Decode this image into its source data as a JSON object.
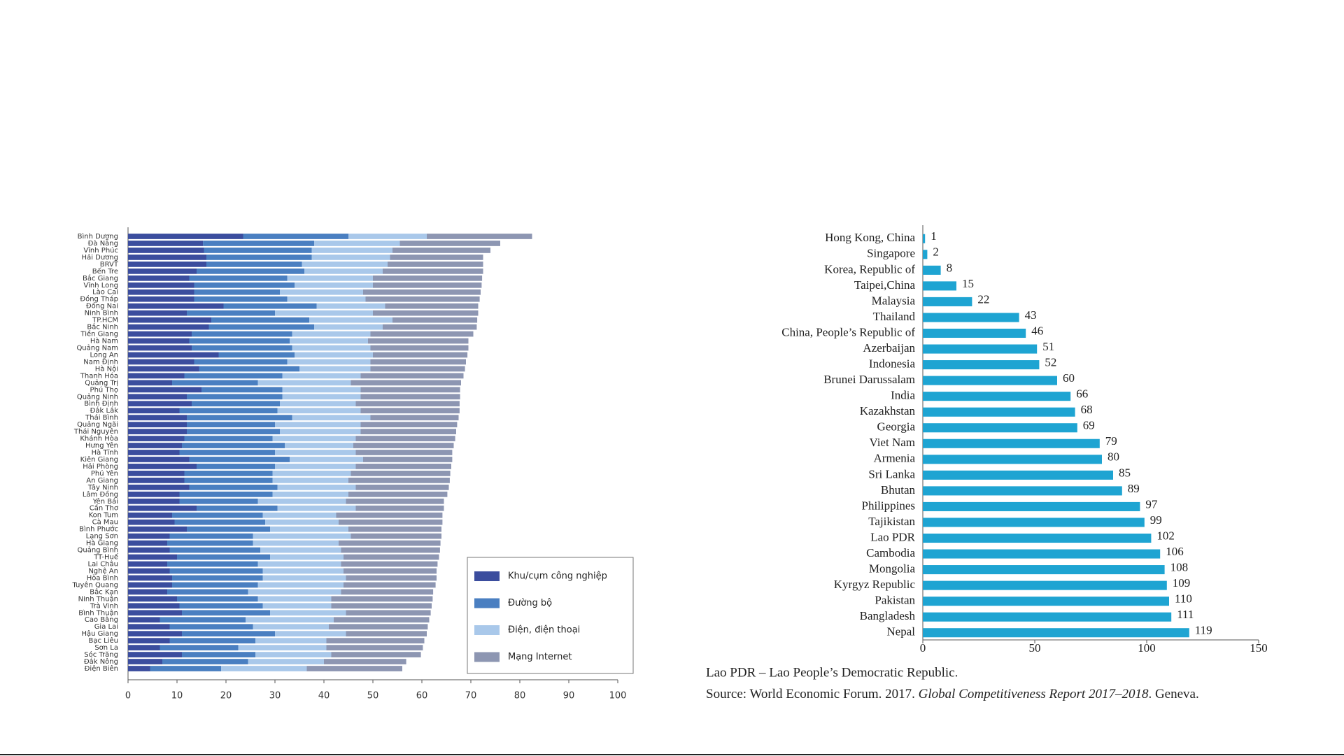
{
  "chart_data": [
    {
      "type": "bar",
      "orientation": "horizontal",
      "stacked": true,
      "categories": [
        "Bình Dương",
        "Đà Nẵng",
        "Vĩnh Phúc",
        "Hải Dương",
        "BRVT",
        "Bến Tre",
        "Bắc Giang",
        "Vĩnh Long",
        "Lào Cai",
        "Đồng Tháp",
        "Đồng Nai",
        "Ninh Bình",
        "TP.HCM",
        "Bắc Ninh",
        "Tiền Giang",
        "Hà Nam",
        "Quảng Nam",
        "Long An",
        "Nam Định",
        "Hà Nội",
        "Thanh Hóa",
        "Quảng Trị",
        "Phú Thọ",
        "Quảng Ninh",
        "Bình Định",
        "Đắk Lắk",
        "Thái Bình",
        "Quảng Ngãi",
        "Thái Nguyên",
        "Khánh Hòa",
        "Hưng Yên",
        "Hà Tĩnh",
        "Kiên Giang",
        "Hải Phòng",
        "Phú Yên",
        "An Giang",
        "Tây Ninh",
        "Lâm Đồng",
        "Yên Bái",
        "Cần Thơ",
        "Kon Tum",
        "Cà Mau",
        "Bình Phước",
        "Lạng Sơn",
        "Hà Giang",
        "Quảng Bình",
        "TT-Huế",
        "Lai Châu",
        "Nghệ An",
        "Hòa Bình",
        "Tuyên Quang",
        "Bắc Kạn",
        "Ninh Thuận",
        "Trà Vinh",
        "Bình Thuận",
        "Cao Bằng",
        "Gia Lai",
        "Hậu Giang",
        "Bạc Liêu",
        "Sơn La",
        "Sóc Trăng",
        "Đắk Nông",
        "Điện Biên"
      ],
      "series": [
        {
          "name": "Khu/cụm công nghiệp",
          "color": "#3b4d9e",
          "values": [
            23.5,
            15.3,
            15.5,
            16,
            16,
            14,
            12.5,
            13.5,
            13.5,
            13.5,
            19.5,
            12,
            17,
            16.5,
            13,
            12.5,
            13,
            18.5,
            13.5,
            14.5,
            11.5,
            9,
            15,
            12,
            13,
            10.5,
            12,
            12,
            12,
            11.5,
            11,
            10.5,
            12.5,
            14,
            11.5,
            11.5,
            12.5,
            10.5,
            10.5,
            14,
            9,
            9.5,
            12,
            8.5,
            8,
            8.5,
            10,
            8,
            8.5,
            9,
            9,
            8,
            10,
            10.5,
            11,
            6.5,
            8.5,
            11,
            8.5,
            6.5,
            11,
            7,
            4.5
          ]
        },
        {
          "name": "Đường bộ",
          "color": "#4a7fc1",
          "values": [
            21.5,
            22.7,
            22,
            21.5,
            19.5,
            22,
            20,
            20.5,
            17.5,
            19,
            19,
            18,
            20,
            21.5,
            20.5,
            20.5,
            20.5,
            15.5,
            19,
            20.5,
            20,
            17.5,
            16.5,
            19.5,
            18,
            20,
            21.5,
            18,
            19,
            18,
            21,
            19.5,
            20.5,
            16,
            18,
            18,
            18,
            19,
            16,
            16.5,
            18.5,
            18.5,
            17,
            17,
            17.5,
            18.5,
            19,
            18.5,
            19,
            18.5,
            17.5,
            16.5,
            16.5,
            17,
            18,
            17.5,
            17,
            19,
            17.5,
            16,
            15,
            17.5,
            14.5
          ]
        },
        {
          "name": "Điện, điện thoại",
          "color": "#a9c8ea",
          "values": [
            16,
            17.5,
            16.5,
            16,
            17.5,
            16,
            17.5,
            16,
            17,
            16,
            14,
            20,
            17,
            14,
            16,
            16,
            16,
            16,
            17,
            14.5,
            16,
            19,
            16,
            16,
            15.5,
            17,
            16,
            17.5,
            16.5,
            17,
            14,
            16.5,
            15,
            16.5,
            16,
            15.5,
            16,
            15.5,
            18,
            16,
            15,
            15,
            16,
            20,
            17.5,
            16.5,
            15,
            17,
            16.5,
            17,
            17.5,
            19,
            15,
            14,
            15.5,
            18,
            15.5,
            14.5,
            14.5,
            18,
            15.5,
            15.5,
            17.5
          ]
        },
        {
          "name": "Mạng Internet",
          "color": "#8d96b2",
          "values": [
            21.5,
            20.5,
            20,
            19,
            19.5,
            20.5,
            22.3,
            22.2,
            24,
            23.3,
            19,
            21.5,
            17.3,
            19.2,
            21,
            20.5,
            20,
            19.3,
            19.5,
            19.3,
            21,
            22.5,
            20.3,
            20.3,
            21.2,
            20.2,
            18,
            19.7,
            19.5,
            20.3,
            20.5,
            19.7,
            18.2,
            19.5,
            20.3,
            20.7,
            19,
            20.2,
            20,
            18,
            21.7,
            21.2,
            19,
            18.5,
            20.8,
            20.2,
            19.5,
            19.7,
            19,
            18.5,
            18.8,
            18.8,
            20.7,
            20.5,
            17.3,
            19.5,
            20.2,
            16.5,
            20,
            19.7,
            18.3,
            16.8,
            19.5
          ]
        }
      ],
      "xlim": [
        0,
        100
      ],
      "xticks": [
        0,
        10,
        20,
        30,
        40,
        50,
        60,
        70,
        80,
        90,
        100
      ],
      "legend": "lower right"
    },
    {
      "type": "bar",
      "orientation": "horizontal",
      "stacked": false,
      "color": "#1ea4d2",
      "categories": [
        "Hong Kong, China",
        "Singapore",
        "Korea, Republic of",
        "Taipei,China",
        "Malaysia",
        "Thailand",
        "China, People’s Republic of",
        "Azerbaijan",
        "Indonesia",
        "Brunei Darussalam",
        "India",
        "Kazakhstan",
        "Georgia",
        "Viet Nam",
        "Armenia",
        "Sri Lanka",
        "Bhutan",
        "Philippines",
        "Tajikistan",
        "Lao PDR",
        "Cambodia",
        "Mongolia",
        "Kyrgyz Republic",
        "Pakistan",
        "Bangladesh",
        "Nepal"
      ],
      "values": [
        1,
        2,
        8,
        15,
        22,
        43,
        46,
        51,
        52,
        60,
        66,
        68,
        69,
        79,
        80,
        85,
        89,
        97,
        99,
        102,
        106,
        108,
        109,
        110,
        111,
        119
      ],
      "xlim": [
        0,
        150
      ],
      "xticks": [
        0,
        50,
        100,
        150
      ],
      "note": "Lao PDR – Lao People’s Democratic Republic.",
      "source": [
        "Source: World Economic Forum. 2017. ",
        "Global Competitiveness Report 2017–2018",
        ". Geneva."
      ]
    }
  ]
}
